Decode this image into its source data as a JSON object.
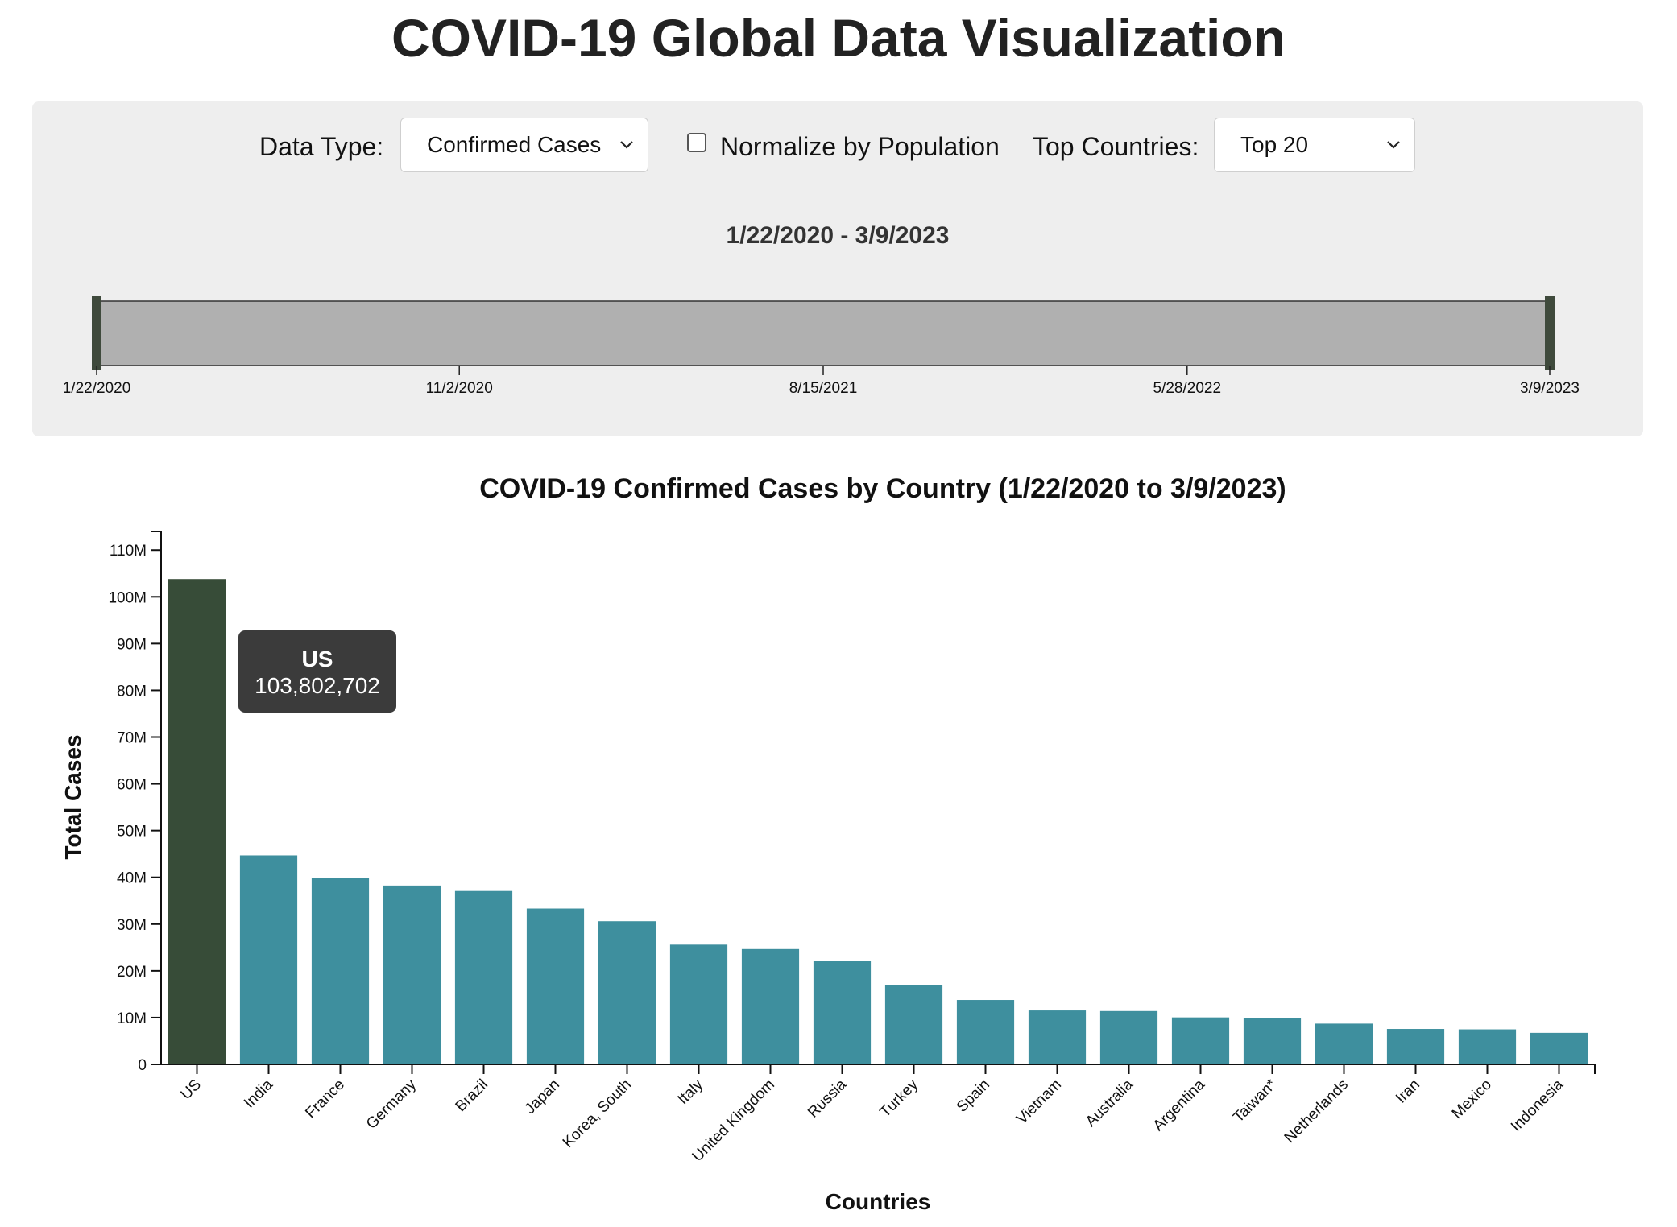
{
  "page": {
    "title": "COVID-19 Global Data Visualization"
  },
  "controls": {
    "data_type_label": "Data Type:",
    "data_type_value": "Confirmed Cases",
    "normalize_label": "Normalize by Population",
    "normalize_checked": false,
    "top_countries_label": "Top Countries:",
    "top_countries_value": "Top 20"
  },
  "timeline": {
    "range_label": "1/22/2020 - 3/9/2023",
    "start_date": "1/22/2020",
    "end_date": "3/9/2023",
    "tick_labels": [
      "1/22/2020",
      "11/2/2020",
      "8/15/2021",
      "5/28/2022",
      "3/9/2023"
    ],
    "selected_range": [
      "1/22/2020",
      "3/9/2023"
    ],
    "colors": {
      "track": "#b0b0b0",
      "handle": "#3f4a3c"
    }
  },
  "tooltip": {
    "country": "US",
    "value": "103,802,702"
  },
  "chart_data": {
    "type": "bar",
    "title": "COVID-19 Confirmed Cases by Country (1/22/2020 to 3/9/2023)",
    "xlabel": "Countries",
    "ylabel": "Total Cases",
    "ylim": [
      0,
      114000000
    ],
    "yticks": [
      0,
      10000000,
      20000000,
      30000000,
      40000000,
      50000000,
      60000000,
      70000000,
      80000000,
      90000000,
      100000000,
      110000000
    ],
    "ytick_labels": [
      "0",
      "10M",
      "20M",
      "30M",
      "40M",
      "50M",
      "60M",
      "70M",
      "80M",
      "90M",
      "100M",
      "110M"
    ],
    "categories": [
      "US",
      "India",
      "France",
      "Germany",
      "Brazil",
      "Japan",
      "Korea, South",
      "Italy",
      "United Kingdom",
      "Russia",
      "Turkey",
      "Spain",
      "Vietnam",
      "Australia",
      "Argentina",
      "Taiwan*",
      "Netherlands",
      "Iran",
      "Mexico",
      "Indonesia"
    ],
    "values": [
      103802702,
      44690738,
      39866718,
      38249060,
      37076053,
      33320438,
      30615522,
      25603510,
      24658705,
      22075858,
      17042722,
      13770429,
      11526994,
      11399460,
      10044957,
      9970937,
      8712835,
      7572311,
      7483444,
      6738225
    ],
    "highlighted": "US",
    "colors": {
      "bar": "#3e8f9e",
      "highlight": "#374c38"
    },
    "grid": false,
    "legend": "none"
  }
}
